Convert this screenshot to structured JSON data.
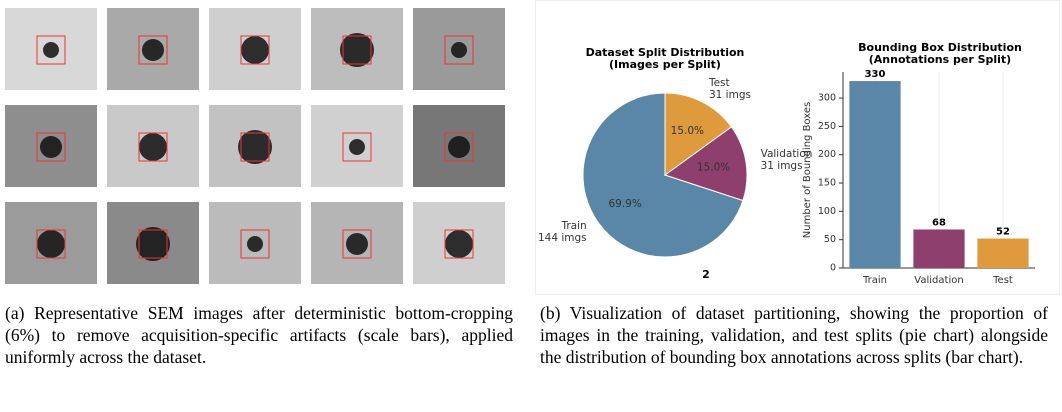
{
  "figure_b_number": "2",
  "chart_data": [
    {
      "type": "pie",
      "title": "Dataset Split Distribution",
      "subtitle": "(Images per Split)",
      "categories": [
        "Train",
        "Validation",
        "Test"
      ],
      "outer_labels": [
        "144 imgs",
        "31 imgs",
        "31 imgs"
      ],
      "values": [
        69.9,
        15.0,
        15.0
      ],
      "value_labels": [
        "69.9%",
        "15.0%",
        "15.0%"
      ],
      "colors": [
        "#5a87a8",
        "#8e3f6e",
        "#e09a3e"
      ]
    },
    {
      "type": "bar",
      "title": "Bounding Box Distribution",
      "subtitle": "(Annotations per Split)",
      "y_label": "Number of Bounding Boxes",
      "categories": [
        "Train",
        "Validation",
        "Test"
      ],
      "values": [
        330,
        68,
        52
      ],
      "colors": [
        "#5a87a8",
        "#8e3f6e",
        "#e09a3e"
      ],
      "ylim": [
        0,
        346
      ],
      "yticks": [
        0,
        50,
        100,
        150,
        200,
        250,
        300
      ]
    }
  ],
  "captions": [
    "(a) Representative SEM images after deterministic bottom-cropping (6%) to remove acquisition-specific artifacts (scale bars), applied uniformly across the dataset.",
    "(b) Visualization of dataset partitioning, showing the proportion of images in the training, validation, and test splits (pie chart) alongside the distribution of bounding box annotations across splits (bar chart)."
  ]
}
